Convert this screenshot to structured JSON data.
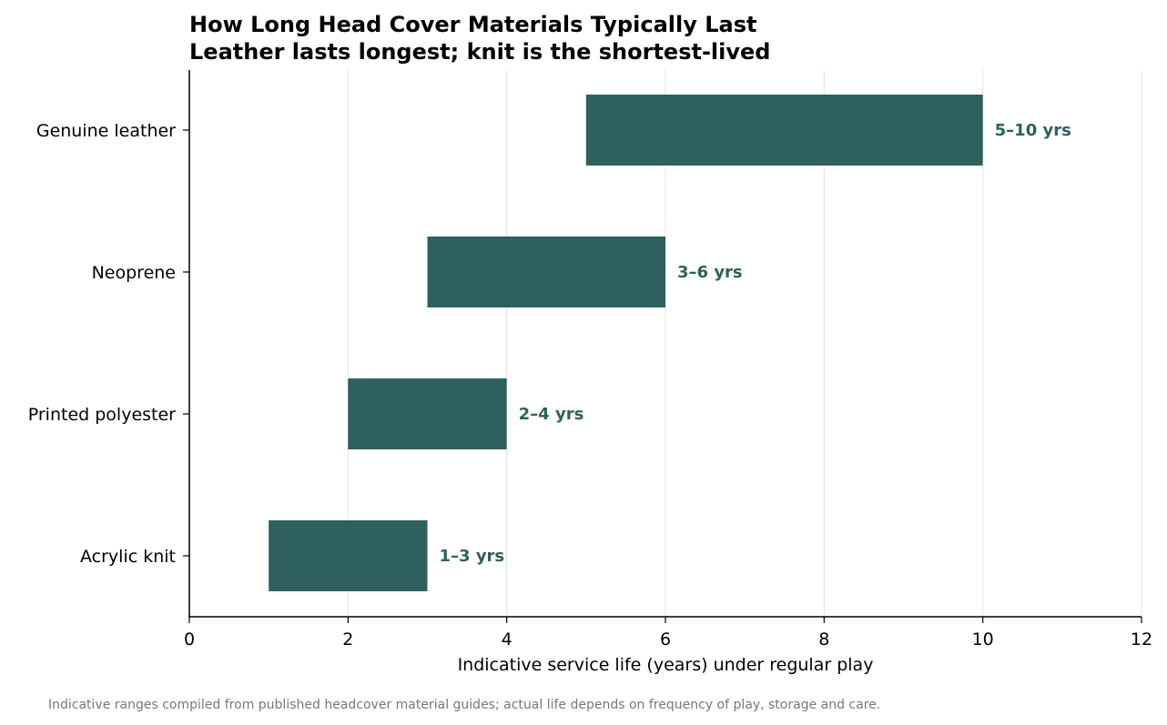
{
  "chart_data": {
    "type": "bar",
    "orientation": "horizontal",
    "style": "floating-range",
    "title": "How Long Head Cover Materials Typically Last",
    "subtitle": "Leather lasts longest; knit is the shortest-lived",
    "xlabel": "Indicative service life (years) under regular play",
    "ylabel": "",
    "xlim": [
      0,
      12
    ],
    "xticks": [
      0,
      2,
      4,
      6,
      8,
      10,
      12
    ],
    "grid": "vertical",
    "categories": [
      "Genuine leather",
      "Neoprene",
      "Printed polyester",
      "Acrylic knit"
    ],
    "ranges": [
      {
        "start": 5,
        "end": 10,
        "label": "5–10 yrs"
      },
      {
        "start": 3,
        "end": 6,
        "label": "3–6 yrs"
      },
      {
        "start": 2,
        "end": 4,
        "label": "2–4 yrs"
      },
      {
        "start": 1,
        "end": 3,
        "label": "1–3 yrs"
      }
    ],
    "bar_color": "#2e605d",
    "label_color": "#2e605d",
    "footnote": "Indicative ranges compiled from published headcover material guides; actual life depends on frequency of play, storage and care."
  }
}
